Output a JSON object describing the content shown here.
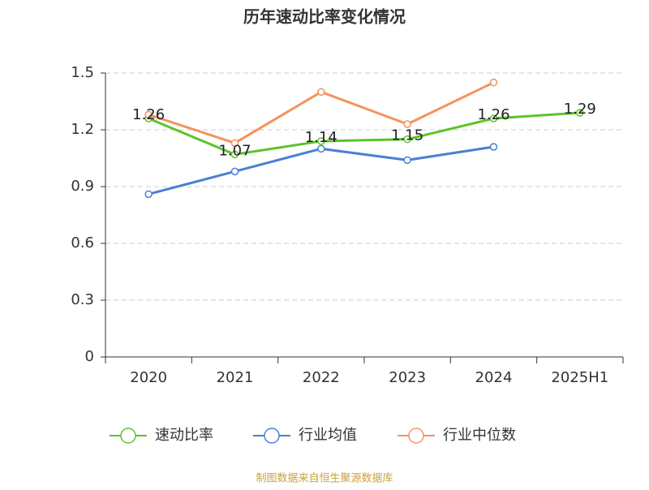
{
  "chart_data": {
    "type": "line",
    "title": "历年速动比率变化情况",
    "categories": [
      "2020",
      "2021",
      "2022",
      "2023",
      "2024",
      "2025H1"
    ],
    "series": [
      {
        "name": "速动比率",
        "color": "#5bc42b",
        "values": [
          1.26,
          1.07,
          1.14,
          1.15,
          1.26,
          1.29
        ],
        "show_labels": true
      },
      {
        "name": "行业均值",
        "color": "#4a7fd6",
        "values": [
          0.86,
          0.98,
          1.1,
          1.04,
          1.11,
          null
        ],
        "show_labels": false
      },
      {
        "name": "行业中位数",
        "color": "#f4935e",
        "values": [
          1.28,
          1.13,
          1.4,
          1.23,
          1.45,
          null
        ],
        "show_labels": false
      }
    ],
    "ylim": [
      0,
      1.5
    ],
    "yticks": [
      0,
      0.3,
      0.6,
      0.9,
      1.2,
      1.5
    ],
    "grid": true,
    "legend": "bottom",
    "source": "制图数据来自恒生聚源数据库"
  }
}
